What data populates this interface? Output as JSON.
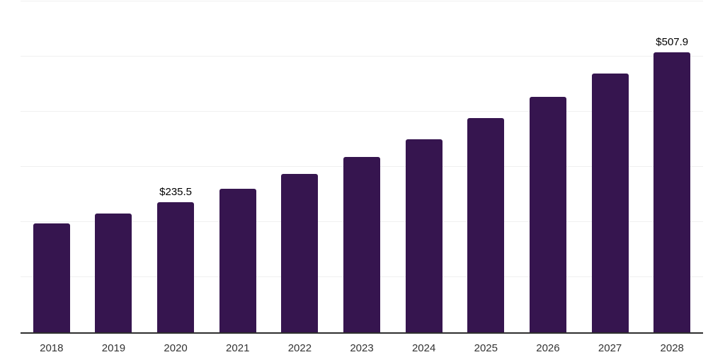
{
  "chart_data": {
    "type": "bar",
    "title": "",
    "xlabel": "",
    "ylabel": "",
    "categories": [
      "2018",
      "2019",
      "2020",
      "2021",
      "2022",
      "2023",
      "2024",
      "2025",
      "2026",
      "2027",
      "2028"
    ],
    "values": [
      198,
      215,
      235.5,
      260,
      287,
      318,
      350,
      389,
      427,
      469,
      507.9
    ],
    "data_labels": [
      "",
      "",
      "$235.5",
      "",
      "",
      "",
      "",
      "",
      "",
      "",
      "$507.9"
    ],
    "ylim": [
      0,
      600
    ],
    "gridline_step": 100,
    "grid": "horizontal",
    "legend_position": "none",
    "colors": {
      "bar": "#36154f",
      "axis_line": "#2e2e2e",
      "gridline": "#f0f0f0",
      "tick_label": "#333333",
      "data_label": "#000000",
      "background": "#ffffff"
    }
  }
}
